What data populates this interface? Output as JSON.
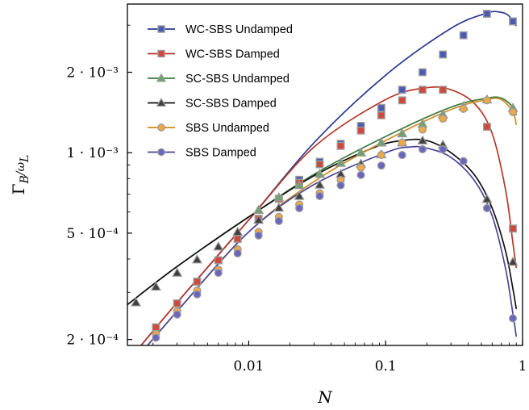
{
  "chart_data": {
    "type": "line",
    "xlabel": "N",
    "ylabel": "Γ_B/ω_L",
    "x_scale": "log",
    "y_scale": "log",
    "xlim": [
      0.0013,
      1.0
    ],
    "ylim": [
      0.00019,
      0.0036
    ],
    "x_ticks": [
      {
        "value": 0.01,
        "label": "0.01"
      },
      {
        "value": 0.1,
        "label": "0.1"
      },
      {
        "value": 1,
        "label": "1"
      }
    ],
    "y_ticks": [
      {
        "value": 0.0002,
        "label": "2 · 10⁻⁴"
      },
      {
        "value": 0.0005,
        "label": "5 · 10⁻⁴"
      },
      {
        "value": 0.001,
        "label": "1 · 10⁻³"
      },
      {
        "value": 0.002,
        "label": "2 · 10⁻³"
      }
    ],
    "legend_position": "top-left",
    "grid": false,
    "series": [
      {
        "name": "WC-SBS Undamped",
        "color": "#2b3a8f",
        "marker_fill": "#4a5ab5",
        "marker": "square",
        "curve_x": [
          0.0013,
          0.003,
          0.01,
          0.03,
          0.1,
          0.3,
          0.55,
          0.68,
          0.78,
          0.85,
          0.9
        ],
        "curve_y": [
          0.000165,
          0.000275,
          0.00056,
          0.00109,
          0.00195,
          0.00292,
          0.00333,
          0.00336,
          0.00328,
          0.0031,
          0.00298
        ],
        "points_x": [
          0.0015,
          0.0021,
          0.003,
          0.0042,
          0.006,
          0.0083,
          0.0118,
          0.0166,
          0.0234,
          0.033,
          0.047,
          0.066,
          0.093,
          0.132,
          0.186,
          0.262,
          0.37,
          0.55,
          0.85
        ],
        "points_y": [
          0.000183,
          0.000222,
          0.000273,
          0.000329,
          0.000396,
          0.000476,
          0.000566,
          0.000672,
          0.000792,
          0.000925,
          0.00108,
          0.00126,
          0.00147,
          0.00172,
          0.002,
          0.00233,
          0.00275,
          0.00331,
          0.0031
        ]
      },
      {
        "name": "WC-SBS Damped",
        "color": "#b5382b",
        "marker_fill": "#d1473a",
        "marker": "square",
        "curve_x": [
          0.0013,
          0.003,
          0.01,
          0.03,
          0.1,
          0.2,
          0.3,
          0.45,
          0.6,
          0.75,
          0.85,
          0.9
        ],
        "curve_y": [
          0.000165,
          0.000275,
          0.00056,
          0.00105,
          0.00158,
          0.00175,
          0.00172,
          0.00152,
          0.00118,
          0.00073,
          0.00046,
          0.00037
        ],
        "points_x": [
          0.0015,
          0.0021,
          0.003,
          0.0042,
          0.006,
          0.0083,
          0.0118,
          0.0166,
          0.0234,
          0.033,
          0.047,
          0.066,
          0.093,
          0.132,
          0.186,
          0.262,
          0.55,
          0.85
        ],
        "points_y": [
          0.000183,
          0.000222,
          0.000273,
          0.000329,
          0.000396,
          0.000476,
          0.000566,
          0.000672,
          0.000772,
          0.000905,
          0.00106,
          0.00121,
          0.00138,
          0.00157,
          0.00172,
          0.00172,
          0.00125,
          0.00052
        ]
      },
      {
        "name": "SC-SBS Undamped",
        "color": "#3d7a3d",
        "marker_fill": "#6fa06f",
        "marker": "triangle",
        "curve_x": [
          0.0013,
          0.003,
          0.01,
          0.03,
          0.1,
          0.3,
          0.55,
          0.7,
          0.85,
          0.9
        ],
        "curve_y": [
          0.00027,
          0.000375,
          0.000575,
          0.00083,
          0.00115,
          0.00148,
          0.0016,
          0.0016,
          0.00148,
          0.00138
        ],
        "points_x": [
          0.0118,
          0.0166,
          0.0234,
          0.033,
          0.047,
          0.066,
          0.093,
          0.132,
          0.186,
          0.262,
          0.37,
          0.55,
          0.85
        ],
        "points_y": [
          0.00061,
          0.00068,
          0.000755,
          0.000832,
          0.000915,
          0.001,
          0.00109,
          0.00118,
          0.00128,
          0.00139,
          0.00149,
          0.00158,
          0.00147
        ]
      },
      {
        "name": "SC-SBS Damped",
        "color": "#111111",
        "marker_fill": "#404040",
        "marker": "triangle",
        "curve_x": [
          0.0013,
          0.003,
          0.01,
          0.03,
          0.08,
          0.13,
          0.2,
          0.3,
          0.45,
          0.6,
          0.75,
          0.85,
          0.9
        ],
        "curve_y": [
          0.00027,
          0.000375,
          0.000575,
          0.00082,
          0.00104,
          0.00111,
          0.00111,
          0.001,
          0.00082,
          0.00062,
          0.00043,
          0.00031,
          0.00026
        ],
        "points_x": [
          0.0015,
          0.0021,
          0.003,
          0.0042,
          0.006,
          0.0083,
          0.0118,
          0.0166,
          0.0234,
          0.033,
          0.047,
          0.066,
          0.093,
          0.132,
          0.186,
          0.262,
          0.55,
          0.85
        ],
        "points_y": [
          0.000275,
          0.000315,
          0.000355,
          0.000398,
          0.000445,
          0.000505,
          0.00056,
          0.000622,
          0.000688,
          0.000758,
          0.000832,
          0.000908,
          0.000985,
          0.00109,
          0.00111,
          0.00107,
          0.00067,
          0.00039
        ]
      },
      {
        "name": "SBS Undamped",
        "color": "#d28a1e",
        "marker_fill": "#f0a845",
        "marker": "circle",
        "curve_x": [
          0.0013,
          0.003,
          0.01,
          0.03,
          0.1,
          0.3,
          0.55,
          0.7,
          0.85,
          0.9
        ],
        "curve_y": [
          0.000155,
          0.000255,
          0.000505,
          0.00078,
          0.00111,
          0.00145,
          0.00158,
          0.00158,
          0.00142,
          0.00127
        ],
        "points_x": [
          0.0021,
          0.003,
          0.0042,
          0.006,
          0.0083,
          0.0118,
          0.0166,
          0.0234,
          0.033,
          0.047,
          0.066,
          0.093,
          0.132,
          0.186,
          0.262,
          0.37,
          0.55,
          0.85
        ],
        "points_y": [
          0.00021,
          0.000255,
          0.000305,
          0.000365,
          0.000435,
          0.000505,
          0.000575,
          0.00064,
          0.000705,
          0.00079,
          0.00088,
          0.00098,
          0.00109,
          0.00122,
          0.00134,
          0.00146,
          0.00157,
          0.00142
        ]
      },
      {
        "name": "SBS Damped",
        "color": "#4a4699",
        "marker_fill": "#6a66c0",
        "marker": "circle",
        "curve_x": [
          0.0013,
          0.003,
          0.01,
          0.03,
          0.1,
          0.15,
          0.2,
          0.3,
          0.45,
          0.6,
          0.75,
          0.85,
          0.9
        ],
        "curve_y": [
          0.000155,
          0.000255,
          0.000505,
          0.00076,
          0.001,
          0.00105,
          0.00104,
          0.00096,
          0.00078,
          0.00058,
          0.00037,
          0.00025,
          0.000205
        ],
        "points_x": [
          0.0021,
          0.003,
          0.0042,
          0.006,
          0.0083,
          0.0118,
          0.0166,
          0.0234,
          0.033,
          0.047,
          0.066,
          0.093,
          0.132,
          0.186,
          0.262,
          0.37,
          0.55,
          0.85
        ],
        "points_y": [
          0.000203,
          0.000248,
          0.000295,
          0.000355,
          0.00042,
          0.00049,
          0.000555,
          0.00062,
          0.000688,
          0.000755,
          0.000825,
          0.000895,
          0.00098,
          0.00103,
          0.00103,
          0.00093,
          0.00062,
          0.00024
        ]
      }
    ]
  }
}
